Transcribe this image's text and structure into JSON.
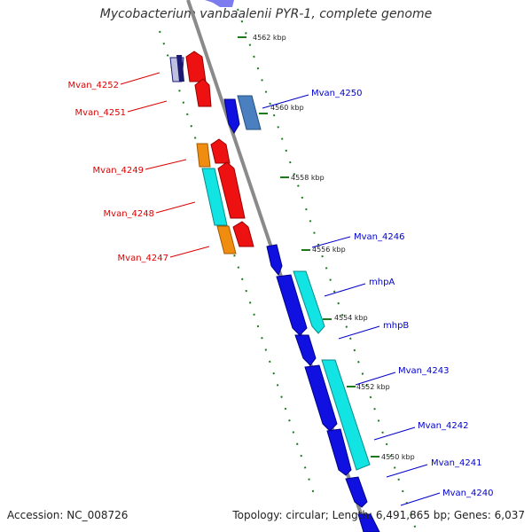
{
  "title": "Mycobacterium vanbaalenii PYR-1, complete genome",
  "accession": "Accession: NC_008726",
  "topology": "Topology: circular; Length: 6,491,865 bp; Genes: 6,037",
  "colors": {
    "backbone": "#8a8a8a",
    "tick": "#1c7a1c",
    "forward_label": "#0000cc",
    "reverse_label": "#dd0000",
    "gene_blue": "#1010e0",
    "gene_red": "#ee1111",
    "gene_orange": "#f08c10",
    "gene_cyan": "#12e4e4",
    "gene_steel": "#4a7fc0",
    "gene_navy": "#1a1a70"
  },
  "ticks": [
    {
      "kbp": 4562,
      "label": "4562 kbp"
    },
    {
      "kbp": 4560,
      "label": "4560 kbp"
    },
    {
      "kbp": 4558,
      "label": "4558 kbp"
    },
    {
      "kbp": 4556,
      "label": "4556 kbp"
    },
    {
      "kbp": 4554,
      "label": "4554 kbp"
    },
    {
      "kbp": 4552,
      "label": "4552 kbp"
    },
    {
      "kbp": 4550,
      "label": "4550 kbp"
    }
  ],
  "gene_labels": {
    "forward": [
      "Mvan_4250",
      "Mvan_4246",
      "mhpA",
      "mhpB",
      "Mvan_4243",
      "Mvan_4242",
      "Mvan_4241",
      "Mvan_4240"
    ],
    "reverse": [
      "Mvan_4252",
      "Mvan_4251",
      "Mvan_4249",
      "Mvan_4248",
      "Mvan_4247"
    ]
  }
}
